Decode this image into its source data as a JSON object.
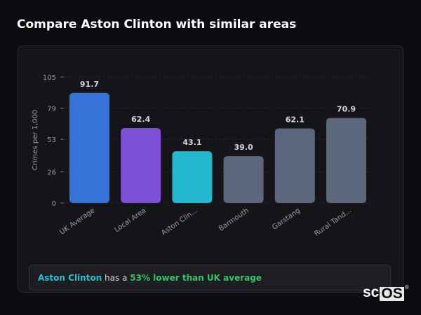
{
  "header": {
    "title": "Compare Aston Clinton with similar areas"
  },
  "chart_data": {
    "type": "bar",
    "title": "",
    "xlabel": "",
    "ylabel": "Crimes per 1,000",
    "ylim": [
      0,
      105
    ],
    "yticks": [
      "0",
      "26",
      "53",
      "79",
      "105"
    ],
    "grid": true,
    "categories": [
      "UK Average",
      "Local Area",
      "Aston Clin...",
      "Barmouth",
      "Garstang",
      "Rural Tand..."
    ],
    "values": [
      91.7,
      62.4,
      43.1,
      39.0,
      62.1,
      70.9
    ],
    "value_labels": [
      "91.7",
      "62.4",
      "43.1",
      "39.0",
      "62.1",
      "70.9"
    ],
    "colors": [
      "#3573d9",
      "#7b4fd6",
      "#22b8cf",
      "#5b687c",
      "#5b687c",
      "#5b687c"
    ]
  },
  "footer": {
    "area": "Aston Clinton",
    "mid": " has a ",
    "stat": "53% lower than UK average"
  },
  "logo": {
    "text": "scOS"
  }
}
